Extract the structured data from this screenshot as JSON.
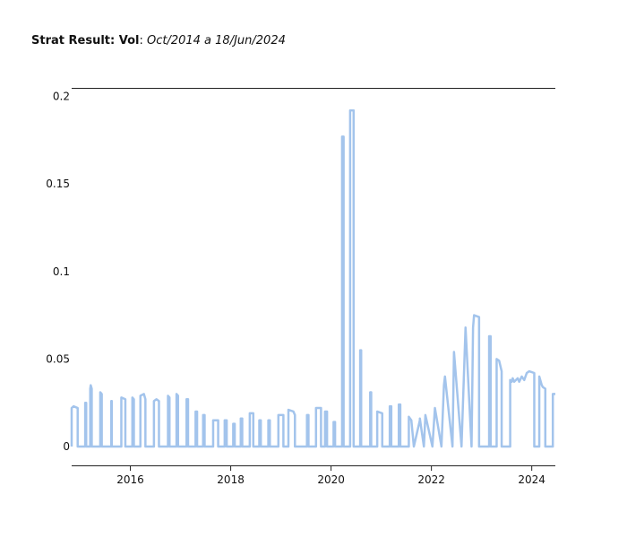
{
  "header": {
    "title_bold": "Strat Result: Vol",
    "title_sep": ":",
    "title_italic": "Oct/2014 a 18/Jun/2024"
  },
  "chart_data": {
    "type": "line",
    "title": "Strat Result: Vol: Oct/2014 a 18/Jun/2024",
    "xlabel": "",
    "ylabel": "",
    "xlim": [
      2014.83,
      2024.47
    ],
    "ylim": [
      -0.01,
      0.2
    ],
    "grid": false,
    "legend": "none",
    "line_color": "#a3c4ec",
    "x_ticks": [
      {
        "value": 2016,
        "label": "2016"
      },
      {
        "value": 2018,
        "label": "2018"
      },
      {
        "value": 2020,
        "label": "2020"
      },
      {
        "value": 2022,
        "label": "2022"
      },
      {
        "value": 2024,
        "label": "2024"
      }
    ],
    "y_ticks": [
      {
        "value": 0,
        "label": "0"
      },
      {
        "value": 0.05,
        "label": "0.05"
      },
      {
        "value": 0.1,
        "label": "0.1"
      },
      {
        "value": 0.15,
        "label": "0.15"
      },
      {
        "value": 0.2,
        "label": "0.2"
      }
    ],
    "series": [
      {
        "x": [
          2014.83,
          2014.83,
          2014.87,
          2014.95,
          2014.95,
          2015.1,
          2015.1,
          2015.12,
          2015.12,
          2015.2,
          2015.2,
          2015.21,
          2015.22,
          2015.23,
          2015.23,
          2015.4,
          2015.4,
          2015.43,
          2015.43,
          2015.62,
          2015.62,
          2015.63,
          2015.63,
          2015.82,
          2015.82,
          2015.9,
          2015.9,
          2016.04,
          2016.04,
          2016.07,
          2016.07,
          2016.2,
          2016.2,
          2016.27,
          2016.3,
          2016.3,
          2016.47,
          2016.47,
          2016.52,
          2016.57,
          2016.57,
          2016.75,
          2016.75,
          2016.78,
          2016.78,
          2016.92,
          2016.92,
          2016.95,
          2016.95,
          2017.12,
          2017.12,
          2017.15,
          2017.15,
          2017.3,
          2017.3,
          2017.33,
          2017.33,
          2017.45,
          2017.45,
          2017.48,
          2017.48,
          2017.65,
          2017.65,
          2017.75,
          2017.75,
          2017.88,
          2017.88,
          2017.92,
          2017.92,
          2018.05,
          2018.05,
          2018.08,
          2018.08,
          2018.2,
          2018.2,
          2018.23,
          2018.23,
          2018.38,
          2018.38,
          2018.45,
          2018.45,
          2018.57,
          2018.57,
          2018.6,
          2018.6,
          2018.75,
          2018.75,
          2018.78,
          2018.78,
          2018.95,
          2018.95,
          2019.05,
          2019.05,
          2019.15,
          2019.15,
          2019.25,
          2019.28,
          2019.28,
          2019.52,
          2019.52,
          2019.55,
          2019.55,
          2019.7,
          2019.7,
          2019.8,
          2019.8,
          2019.88,
          2019.88,
          2019.92,
          2019.92,
          2020.05,
          2020.05,
          2020.08,
          2020.08,
          2020.22,
          2020.22,
          2020.25,
          2020.25,
          2020.38,
          2020.38,
          2020.45,
          2020.45,
          2020.58,
          2020.58,
          2020.6,
          2020.6,
          2020.78,
          2020.78,
          2020.8,
          2020.8,
          2020.92,
          2020.92,
          2021.02,
          2021.02,
          2021.17,
          2021.17,
          2021.2,
          2021.2,
          2021.35,
          2021.35,
          2021.38,
          2021.38,
          2021.55,
          2021.55,
          2021.6,
          2021.65,
          2021.65,
          2021.77,
          2021.77,
          2021.85,
          2021.85,
          2021.88,
          2021.88,
          2022.02,
          2022.02,
          2022.07,
          2022.07,
          2022.2,
          2022.2,
          2022.25,
          2022.27,
          2022.27,
          2022.42,
          2022.42,
          2022.45,
          2022.45,
          2022.6,
          2022.6,
          2022.68,
          2022.68,
          2022.8,
          2022.8,
          2022.83,
          2022.85,
          2022.95,
          2022.95,
          2023.15,
          2023.15,
          2023.18,
          2023.18,
          2023.3,
          2023.3,
          2023.35,
          2023.4,
          2023.4,
          2023.57,
          2023.57,
          2023.6,
          2023.62,
          2023.65,
          2023.72,
          2023.75,
          2023.8,
          2023.85,
          2023.9,
          2023.95,
          2024.05,
          2024.05,
          2024.15,
          2024.15,
          2024.2,
          2024.22,
          2024.27,
          2024.27,
          2024.42,
          2024.42,
          2024.47
        ],
        "y": [
          0,
          0.022,
          0.023,
          0.022,
          0,
          0,
          0.025,
          0.025,
          0,
          0,
          0.033,
          0.035,
          0.034,
          0.033,
          0,
          0,
          0.031,
          0.03,
          0,
          0,
          0.026,
          0.026,
          0,
          0,
          0.028,
          0.027,
          0,
          0,
          0.028,
          0.027,
          0,
          0,
          0.029,
          0.03,
          0.027,
          0,
          0,
          0.026,
          0.027,
          0.026,
          0,
          0,
          0.029,
          0.028,
          0,
          0,
          0.03,
          0.029,
          0,
          0,
          0.027,
          0.027,
          0,
          0,
          0.02,
          0.02,
          0,
          0,
          0.018,
          0.018,
          0,
          0,
          0.015,
          0.015,
          0,
          0,
          0.015,
          0.015,
          0,
          0,
          0.013,
          0.013,
          0,
          0,
          0.016,
          0.016,
          0,
          0,
          0.019,
          0.019,
          0,
          0,
          0.015,
          0.015,
          0,
          0,
          0.015,
          0.015,
          0,
          0,
          0.018,
          0.018,
          0,
          0,
          0.021,
          0.02,
          0.018,
          0,
          0,
          0.018,
          0.018,
          0,
          0,
          0.022,
          0.022,
          0,
          0,
          0.02,
          0.02,
          0,
          0,
          0.014,
          0.014,
          0,
          0,
          0.177,
          0.177,
          0,
          0,
          0.192,
          0.192,
          0,
          0,
          0.055,
          0.055,
          0,
          0,
          0.031,
          0.031,
          0,
          0,
          0.02,
          0.019,
          0,
          0,
          0.023,
          0.023,
          0,
          0,
          0.024,
          0.024,
          0,
          0,
          0.017,
          0.015,
          0,
          0,
          0.015,
          0.016,
          0,
          0,
          0.018,
          0.018,
          0,
          0,
          0.022,
          0.022,
          0,
          0,
          0.035,
          0.04,
          0.04,
          0,
          0,
          0.054,
          0.054,
          0,
          0,
          0.068,
          0.068,
          0,
          0,
          0.068,
          0.075,
          0.074,
          0,
          0,
          0.063,
          0.063,
          0,
          0,
          0.05,
          0.049,
          0.043,
          0,
          0,
          0.038,
          0.037,
          0.039,
          0.037,
          0.039,
          0.037,
          0.04,
          0.038,
          0.042,
          0.043,
          0.042,
          0,
          0,
          0.04,
          0.035,
          0.034,
          0.033,
          0,
          0,
          0.03,
          0.03
        ]
      }
    ]
  }
}
